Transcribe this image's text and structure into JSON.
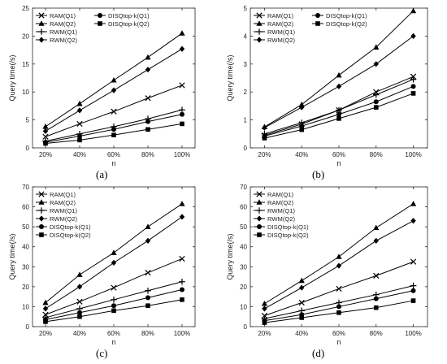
{
  "chart_data": [
    {
      "type": "line",
      "panel_label": "(a)",
      "x": [
        "20%",
        "40%",
        "60%",
        "80%",
        "100%"
      ],
      "xlabel": "n",
      "ylabel": "Query time(/s)",
      "ylim": [
        0,
        25
      ],
      "yticks": [
        0,
        5,
        10,
        15,
        20,
        25
      ],
      "grid": false,
      "legend": "top-left, two columns",
      "series": [
        {
          "name": "RAM(Q1)",
          "marker": "x",
          "values": [
            2.0,
            4.3,
            6.5,
            8.9,
            11.2
          ]
        },
        {
          "name": "RAM(Q2)",
          "marker": "triangle",
          "values": [
            3.8,
            7.9,
            12.1,
            16.2,
            20.5
          ]
        },
        {
          "name": "RWM(Q1)",
          "marker": "plus",
          "values": [
            1.2,
            2.5,
            3.8,
            5.2,
            6.8
          ]
        },
        {
          "name": "RWM(Q2)",
          "marker": "diamond",
          "values": [
            3.0,
            6.7,
            10.3,
            14.0,
            17.7
          ]
        },
        {
          "name": "DISQtop-k(Q1)",
          "marker": "circle",
          "values": [
            1.0,
            2.1,
            3.3,
            4.7,
            6.0
          ]
        },
        {
          "name": "DISQtop-k(Q2)",
          "marker": "square",
          "values": [
            0.8,
            1.4,
            2.3,
            3.3,
            4.3
          ]
        }
      ]
    },
    {
      "type": "line",
      "panel_label": "(b)",
      "x": [
        "20%",
        "40%",
        "60%",
        "80%",
        "100%"
      ],
      "xlabel": "n",
      "ylabel": "Query time(/s)",
      "ylim": [
        0,
        5
      ],
      "yticks": [
        0,
        1,
        2,
        3,
        4,
        5
      ],
      "grid": false,
      "legend": "top-left, two columns",
      "series": [
        {
          "name": "RAM(Q1)",
          "marker": "x",
          "values": [
            0.45,
            0.85,
            1.35,
            2.0,
            2.55
          ]
        },
        {
          "name": "RAM(Q2)",
          "marker": "triangle",
          "values": [
            0.75,
            1.55,
            2.6,
            3.6,
            4.9
          ]
        },
        {
          "name": "RWM(Q1)",
          "marker": "plus",
          "values": [
            0.5,
            0.9,
            1.35,
            1.9,
            2.45
          ]
        },
        {
          "name": "RWM(Q2)",
          "marker": "diamond",
          "values": [
            0.72,
            1.45,
            2.2,
            3.0,
            4.0
          ]
        },
        {
          "name": "DISQtop-k(Q1)",
          "marker": "circle",
          "values": [
            0.42,
            0.78,
            1.2,
            1.65,
            2.2
          ]
        },
        {
          "name": "DISQtop-k(Q2)",
          "marker": "square",
          "values": [
            0.35,
            0.65,
            1.05,
            1.45,
            1.95
          ]
        }
      ]
    },
    {
      "type": "line",
      "panel_label": "(c)",
      "x": [
        "20%",
        "40%",
        "60%",
        "80%",
        "100%"
      ],
      "xlabel": "n",
      "ylabel": "Query time(/s)",
      "ylim": [
        0,
        70
      ],
      "yticks": [
        0,
        10,
        20,
        30,
        40,
        50,
        60,
        70
      ],
      "grid": false,
      "legend": "top-left, single column",
      "series": [
        {
          "name": "RAM(Q1)",
          "marker": "x",
          "values": [
            6.0,
            12.5,
            19.5,
            27.0,
            34.0
          ]
        },
        {
          "name": "RAM(Q2)",
          "marker": "triangle",
          "values": [
            12.0,
            26.0,
            37.0,
            50.0,
            61.5
          ]
        },
        {
          "name": "RWM(Q1)",
          "marker": "plus",
          "values": [
            4.5,
            9.0,
            13.5,
            18.0,
            22.5
          ]
        },
        {
          "name": "RWM(Q2)",
          "marker": "diamond",
          "values": [
            9.0,
            20.0,
            32.0,
            43.0,
            55.0
          ]
        },
        {
          "name": "DISQtop-k(Q1)",
          "marker": "circle",
          "values": [
            3.5,
            7.0,
            10.5,
            14.5,
            18.5
          ]
        },
        {
          "name": "DISQtop-k(Q2)",
          "marker": "square",
          "values": [
            2.5,
            5.0,
            8.0,
            10.5,
            13.5
          ]
        }
      ]
    },
    {
      "type": "line",
      "panel_label": "(d)",
      "x": [
        "20%",
        "40%",
        "60%",
        "80%",
        "100%"
      ],
      "xlabel": "n",
      "ylabel": "Query time(/s)",
      "ylim": [
        0,
        70
      ],
      "yticks": [
        0,
        10,
        20,
        30,
        40,
        50,
        60,
        70
      ],
      "grid": false,
      "legend": "top-left, single column",
      "series": [
        {
          "name": "RAM(Q1)",
          "marker": "x",
          "values": [
            5.5,
            12.0,
            19.0,
            25.5,
            32.5
          ]
        },
        {
          "name": "RAM(Q2)",
          "marker": "triangle",
          "values": [
            11.5,
            23.0,
            35.0,
            49.5,
            61.5
          ]
        },
        {
          "name": "RWM(Q1)",
          "marker": "plus",
          "values": [
            4.0,
            8.0,
            12.0,
            16.0,
            20.5
          ]
        },
        {
          "name": "RWM(Q2)",
          "marker": "diamond",
          "values": [
            9.0,
            19.5,
            30.5,
            43.0,
            53.0
          ]
        },
        {
          "name": "DISQtop-k(Q1)",
          "marker": "circle",
          "values": [
            3.0,
            6.0,
            10.0,
            14.0,
            18.0
          ]
        },
        {
          "name": "DISQtop-k(Q2)",
          "marker": "square",
          "values": [
            2.0,
            4.5,
            7.0,
            9.5,
            13.0
          ]
        }
      ]
    }
  ]
}
